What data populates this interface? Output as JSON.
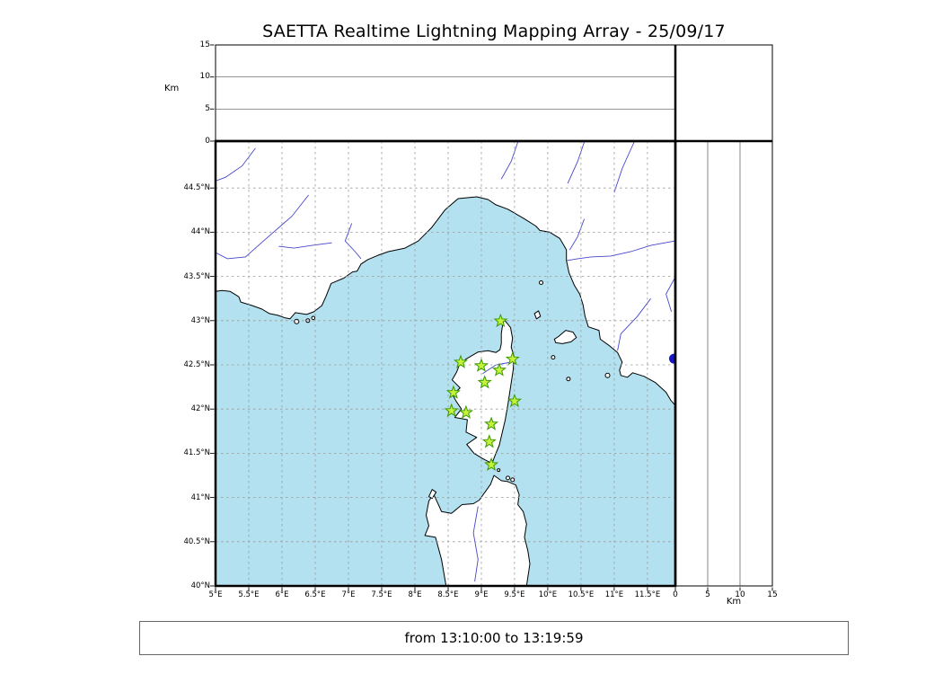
{
  "title": "SAETTA Realtime Lightning Mapping Array - 25/09/17",
  "status_bar": {
    "text": "from 13:10:00 to 13:19:59"
  },
  "axes": {
    "km_label": "Km",
    "altitude_ticks": [
      {
        "value": 0,
        "label": "0"
      },
      {
        "value": 5,
        "label": "5"
      },
      {
        "value": 10,
        "label": "10"
      },
      {
        "value": 15,
        "label": "15"
      }
    ],
    "lat_ticks": [
      {
        "value": 44.5,
        "label": "44.5°N"
      },
      {
        "value": 44,
        "label": "44°N"
      },
      {
        "value": 43.5,
        "label": "43.5°N"
      },
      {
        "value": 43,
        "label": "43°N"
      },
      {
        "value": 42.5,
        "label": "42.5°N"
      },
      {
        "value": 42,
        "label": "42°N"
      },
      {
        "value": 41.5,
        "label": "41.5°N"
      },
      {
        "value": 41,
        "label": "41°N"
      },
      {
        "value": 40.5,
        "label": "40.5°N"
      },
      {
        "value": 40,
        "label": "40°N"
      }
    ],
    "lon_ticks": [
      {
        "value": 5,
        "label": "5°E"
      },
      {
        "value": 5.5,
        "label": "5.5°E"
      },
      {
        "value": 6,
        "label": "6°E"
      },
      {
        "value": 6.5,
        "label": "6.5°E"
      },
      {
        "value": 7,
        "label": "7°E"
      },
      {
        "value": 7.5,
        "label": "7.5°E"
      },
      {
        "value": 8,
        "label": "8°E"
      },
      {
        "value": 8.5,
        "label": "8.5°E"
      },
      {
        "value": 9,
        "label": "9°E"
      },
      {
        "value": 9.5,
        "label": "9.5°E"
      },
      {
        "value": 10,
        "label": "10°E"
      },
      {
        "value": 10.5,
        "label": "10.5°E"
      },
      {
        "value": 11,
        "label": "11°E"
      },
      {
        "value": 11.5,
        "label": "11.5°E"
      }
    ]
  },
  "colors": {
    "sea": "#b3e1ef",
    "land": "#ffffff",
    "coast": "#000000",
    "grid": "#9a9a9a",
    "river": "#4646cc",
    "lake": "#1616c8",
    "star_fill": "#c6f23e",
    "star_edge": "#3a9a00",
    "border": "#000000",
    "panel_grid": "#555555"
  },
  "chart_data": {
    "type": "map",
    "extent": {
      "lon_min": 5,
      "lon_max": 11.92,
      "lat_min": 40,
      "lat_max": 45.03
    },
    "altitude_axis_km": {
      "min": 0,
      "max": 15,
      "gridlines": [
        5,
        10
      ]
    },
    "stations": [
      [
        9.29,
        42.995
      ],
      [
        8.69,
        42.53
      ],
      [
        9.0,
        42.49
      ],
      [
        9.27,
        42.44
      ],
      [
        9.47,
        42.565
      ],
      [
        9.05,
        42.3
      ],
      [
        8.58,
        42.185
      ],
      [
        9.5,
        42.09
      ],
      [
        8.55,
        41.98
      ],
      [
        8.77,
        41.96
      ],
      [
        9.15,
        41.83
      ],
      [
        9.12,
        41.63
      ],
      [
        9.15,
        41.37
      ]
    ],
    "lake_point": {
      "lon": 11.9,
      "lat": 42.57,
      "r": 5.5
    },
    "geo": {
      "mainland": [
        [
          5.0,
          43.33
        ],
        [
          5.1,
          43.34
        ],
        [
          5.22,
          43.33
        ],
        [
          5.35,
          43.27
        ],
        [
          5.38,
          43.21
        ],
        [
          5.55,
          43.17
        ],
        [
          5.7,
          43.13
        ],
        [
          5.81,
          43.08
        ],
        [
          5.94,
          43.06
        ],
        [
          6.05,
          43.03
        ],
        [
          6.12,
          43.02
        ],
        [
          6.2,
          43.09
        ],
        [
          6.37,
          43.07
        ],
        [
          6.48,
          43.1
        ],
        [
          6.6,
          43.17
        ],
        [
          6.66,
          43.27
        ],
        [
          6.74,
          43.42
        ],
        [
          6.93,
          43.48
        ],
        [
          7.06,
          43.55
        ],
        [
          7.13,
          43.56
        ],
        [
          7.19,
          43.64
        ],
        [
          7.29,
          43.69
        ],
        [
          7.45,
          43.74
        ],
        [
          7.6,
          43.78
        ],
        [
          7.85,
          43.82
        ],
        [
          8.05,
          43.9
        ],
        [
          8.25,
          44.05
        ],
        [
          8.45,
          44.25
        ],
        [
          8.65,
          44.38
        ],
        [
          8.93,
          44.4
        ],
        [
          9.1,
          44.37
        ],
        [
          9.22,
          44.31
        ],
        [
          9.4,
          44.26
        ],
        [
          9.65,
          44.15
        ],
        [
          9.82,
          44.07
        ],
        [
          9.88,
          44.02
        ],
        [
          10.03,
          44.0
        ],
        [
          10.18,
          43.93
        ],
        [
          10.28,
          43.8
        ],
        [
          10.28,
          43.68
        ],
        [
          10.32,
          43.54
        ],
        [
          10.4,
          43.4
        ],
        [
          10.48,
          43.3
        ],
        [
          10.53,
          43.18
        ],
        [
          10.56,
          43.05
        ],
        [
          10.61,
          42.93
        ],
        [
          10.77,
          42.89
        ],
        [
          10.79,
          42.79
        ],
        [
          10.92,
          42.72
        ],
        [
          11.05,
          42.64
        ],
        [
          11.12,
          42.53
        ],
        [
          11.08,
          42.44
        ],
        [
          11.1,
          42.38
        ],
        [
          11.2,
          42.36
        ],
        [
          11.28,
          42.41
        ],
        [
          11.45,
          42.37
        ],
        [
          11.62,
          42.3
        ],
        [
          11.78,
          42.19
        ],
        [
          11.85,
          42.1
        ],
        [
          11.92,
          42.04
        ],
        [
          11.92,
          45.03
        ],
        [
          5.0,
          45.03
        ]
      ],
      "corsica": [
        [
          9.345,
          43.01
        ],
        [
          9.44,
          42.92
        ],
        [
          9.47,
          42.8
        ],
        [
          9.45,
          42.7
        ],
        [
          9.49,
          42.6
        ],
        [
          9.48,
          42.45
        ],
        [
          9.44,
          42.25
        ],
        [
          9.4,
          42.05
        ],
        [
          9.36,
          41.88
        ],
        [
          9.31,
          41.72
        ],
        [
          9.27,
          41.59
        ],
        [
          9.22,
          41.5
        ],
        [
          9.16,
          41.385
        ],
        [
          9.02,
          41.44
        ],
        [
          8.89,
          41.5
        ],
        [
          8.78,
          41.6
        ],
        [
          8.93,
          41.68
        ],
        [
          8.77,
          41.74
        ],
        [
          8.79,
          41.88
        ],
        [
          8.6,
          41.905
        ],
        [
          8.7,
          42.0
        ],
        [
          8.62,
          42.09
        ],
        [
          8.57,
          42.16
        ],
        [
          8.68,
          42.24
        ],
        [
          8.56,
          42.33
        ],
        [
          8.63,
          42.42
        ],
        [
          8.67,
          42.5
        ],
        [
          8.77,
          42.565
        ],
        [
          8.95,
          42.645
        ],
        [
          9.1,
          42.66
        ],
        [
          9.22,
          42.64
        ],
        [
          9.28,
          42.67
        ],
        [
          9.3,
          42.74
        ],
        [
          9.3,
          42.85
        ],
        [
          9.32,
          42.95
        ]
      ],
      "sardinia": [
        [
          8.47,
          40.0
        ],
        [
          8.4,
          40.3
        ],
        [
          8.31,
          40.55
        ],
        [
          8.15,
          40.57
        ],
        [
          8.21,
          40.68
        ],
        [
          8.17,
          40.8
        ],
        [
          8.21,
          40.96
        ],
        [
          8.28,
          41.04
        ],
        [
          8.36,
          40.91
        ],
        [
          8.4,
          40.84
        ],
        [
          8.55,
          40.82
        ],
        [
          8.71,
          40.92
        ],
        [
          8.88,
          40.93
        ],
        [
          8.97,
          40.97
        ],
        [
          9.14,
          41.15
        ],
        [
          9.19,
          41.25
        ],
        [
          9.3,
          41.19
        ],
        [
          9.4,
          41.18
        ],
        [
          9.52,
          41.14
        ],
        [
          9.57,
          41.03
        ],
        [
          9.55,
          40.92
        ],
        [
          9.63,
          40.84
        ],
        [
          9.68,
          40.7
        ],
        [
          9.65,
          40.55
        ],
        [
          9.7,
          40.4
        ],
        [
          9.73,
          40.25
        ],
        [
          9.68,
          40.0
        ]
      ],
      "asinara": [
        [
          8.21,
          41.01
        ],
        [
          8.26,
          41.09
        ],
        [
          8.32,
          41.06
        ],
        [
          8.26,
          40.99
        ]
      ],
      "elba": [
        [
          10.1,
          42.79
        ],
        [
          10.16,
          42.82
        ],
        [
          10.27,
          42.89
        ],
        [
          10.38,
          42.87
        ],
        [
          10.43,
          42.81
        ],
        [
          10.35,
          42.76
        ],
        [
          10.22,
          42.74
        ],
        [
          10.12,
          42.75
        ]
      ],
      "capraia": [
        [
          9.8,
          43.08
        ],
        [
          9.86,
          43.11
        ],
        [
          9.89,
          43.05
        ],
        [
          9.83,
          43.02
        ]
      ],
      "islets": [
        [
          9.4,
          41.22,
          2
        ],
        [
          9.47,
          41.2,
          2
        ],
        [
          9.26,
          41.31,
          1.5
        ],
        [
          10.08,
          42.585,
          2
        ],
        [
          10.31,
          42.34,
          2
        ],
        [
          10.9,
          42.38,
          2.5
        ],
        [
          9.9,
          43.43,
          2
        ],
        [
          6.22,
          42.99,
          2.5
        ],
        [
          6.39,
          43.0,
          2
        ],
        [
          6.47,
          43.03,
          1.8
        ]
      ],
      "rivers": [
        [
          [
            6.4,
            44.42
          ],
          [
            6.15,
            44.18
          ],
          [
            5.95,
            44.05
          ],
          [
            5.72,
            43.9
          ],
          [
            5.45,
            43.72
          ],
          [
            5.18,
            43.7
          ],
          [
            5.0,
            43.77
          ]
        ],
        [
          [
            6.75,
            43.88
          ],
          [
            6.45,
            43.85
          ],
          [
            6.18,
            43.82
          ],
          [
            5.95,
            43.84
          ]
        ],
        [
          [
            5.6,
            44.95
          ],
          [
            5.4,
            44.75
          ],
          [
            5.15,
            44.62
          ],
          [
            5.0,
            44.58
          ]
        ],
        [
          [
            7.05,
            44.1
          ],
          [
            6.95,
            43.9
          ],
          [
            7.1,
            43.78
          ],
          [
            7.19,
            43.7
          ]
        ],
        [
          [
            9.55,
            45.02
          ],
          [
            9.45,
            44.8
          ],
          [
            9.3,
            44.6
          ]
        ],
        [
          [
            10.55,
            45.02
          ],
          [
            10.45,
            44.8
          ],
          [
            10.3,
            44.55
          ]
        ],
        [
          [
            11.3,
            45.02
          ],
          [
            11.12,
            44.72
          ],
          [
            11.0,
            44.45
          ]
        ],
        [
          [
            11.91,
            43.9
          ],
          [
            11.55,
            43.85
          ],
          [
            11.25,
            43.78
          ],
          [
            10.95,
            43.73
          ],
          [
            10.65,
            43.72
          ],
          [
            10.45,
            43.7
          ],
          [
            10.29,
            43.68
          ]
        ],
        [
          [
            10.55,
            44.15
          ],
          [
            10.45,
            43.95
          ],
          [
            10.33,
            43.8
          ]
        ],
        [
          [
            11.55,
            43.25
          ],
          [
            11.35,
            43.05
          ],
          [
            11.1,
            42.85
          ],
          [
            11.05,
            42.66
          ]
        ],
        [
          [
            11.91,
            43.48
          ],
          [
            11.78,
            43.3
          ],
          [
            11.86,
            43.1
          ]
        ],
        [
          [
            8.95,
            40.9
          ],
          [
            8.88,
            40.6
          ],
          [
            8.95,
            40.3
          ],
          [
            8.9,
            40.05
          ]
        ],
        [
          [
            9.02,
            42.4
          ],
          [
            9.22,
            42.5
          ],
          [
            9.45,
            42.53
          ]
        ]
      ]
    }
  }
}
